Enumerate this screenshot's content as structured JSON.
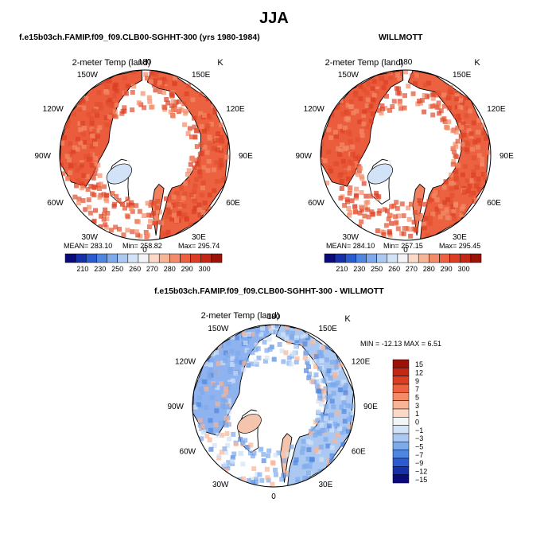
{
  "season": "JJA",
  "panels": [
    {
      "title": "f.e15b03ch.FAMIP.f09_f09.CLB00-SGHHT-300 (yrs 1980-1984)",
      "field": "2-meter Temp (land)",
      "units": "K",
      "stats": {
        "mean": "MEAN= 283.10",
        "min": "Min= 258.82",
        "max": "Max= 295.74"
      }
    },
    {
      "title": "WILLMOTT",
      "field": "2-meter Temp (land)",
      "units": "K",
      "stats": {
        "mean": "MEAN= 284.10",
        "min": "Min= 257.15",
        "max": "Max= 295.45"
      }
    },
    {
      "title": "f.e15b03ch.FAMIP.f09_f09.CLB00-SGHHT-300 - WILLMOTT",
      "field": "2-meter Temp (land)",
      "units": "K",
      "stats": {
        "minmax": "MIN = -12.13 MAX =    6.51"
      }
    }
  ],
  "longitude_labels": [
    "180",
    "150E",
    "120E",
    "90E",
    "60E",
    "30E",
    "0",
    "30W",
    "60W",
    "90W",
    "120W",
    "150W"
  ],
  "abs_colorbar": {
    "labels": [
      "210",
      "230",
      "250",
      "260",
      "270",
      "280",
      "290",
      "300"
    ],
    "colors": [
      "#0a0a7a",
      "#1530a8",
      "#2a5bd0",
      "#4f86e0",
      "#7eaaec",
      "#aac8f2",
      "#d2e2f7",
      "#f2f4f6",
      "#fbd9c6",
      "#f8b496",
      "#f48b68",
      "#ec6140",
      "#dc3e24",
      "#c22814",
      "#9c1208"
    ]
  },
  "diff_colorbar": {
    "labels": [
      "15",
      "12",
      "9",
      "7",
      "5",
      "3",
      "1",
      "0",
      "−1",
      "−3",
      "−5",
      "−7",
      "−9",
      "−12",
      "−15"
    ],
    "colors": [
      "#9c1208",
      "#c22814",
      "#dc3e24",
      "#ec6140",
      "#f48b68",
      "#f8b496",
      "#fbd9c6",
      "#f2f4f6",
      "#d2e2f7",
      "#aac8f2",
      "#7eaaec",
      "#4f86e0",
      "#2a5bd0",
      "#1530a8",
      "#0a0a7a"
    ]
  }
}
